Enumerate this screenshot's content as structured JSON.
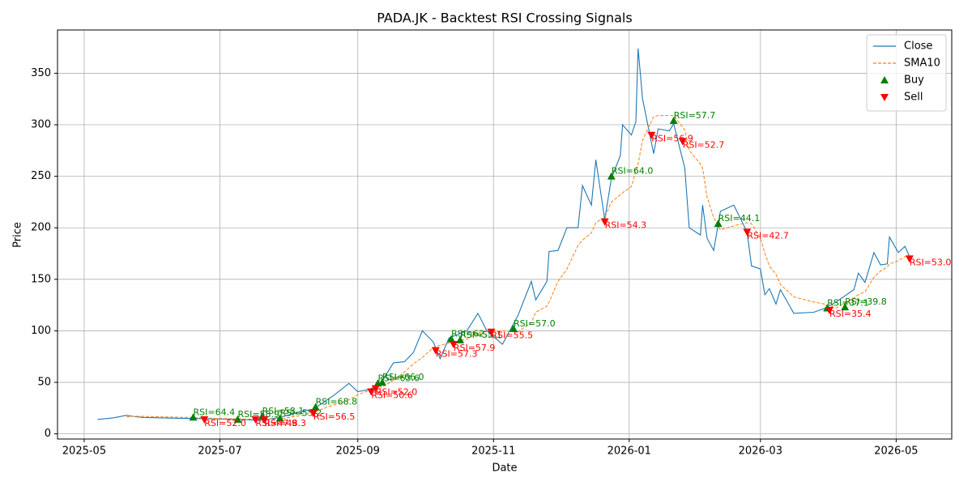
{
  "chart_data": {
    "type": "line",
    "title": "PADA.JK - Backtest RSI Crossing Signals",
    "xlabel": "Date",
    "ylabel": "Price",
    "x": [
      "2025-05-07",
      "2025-05-14",
      "2025-05-20",
      "2025-05-23",
      "2025-05-27",
      "2025-06-05",
      "2025-06-16",
      "2025-06-30",
      "2025-07-11",
      "2025-07-19",
      "2025-07-28",
      "2025-08-07",
      "2025-08-12",
      "2025-08-21",
      "2025-08-28",
      "2025-09-01",
      "2025-09-06",
      "2025-09-11",
      "2025-09-17",
      "2025-09-22",
      "2025-09-26",
      "2025-09-30",
      "2025-10-05",
      "2025-10-08",
      "2025-10-12",
      "2025-10-20",
      "2025-10-25",
      "2025-10-29",
      "2025-11-05",
      "2025-11-12",
      "2025-11-18",
      "2025-11-20",
      "2025-11-25",
      "2025-11-26",
      "2025-11-30",
      "2025-12-04",
      "2025-12-09",
      "2025-12-11",
      "2025-12-15",
      "2025-12-17",
      "2025-12-21",
      "2025-12-24",
      "2025-12-28",
      "2025-12-29",
      "2026-01-02",
      "2026-01-04",
      "2026-01-05",
      "2026-01-07",
      "2026-01-12",
      "2026-01-14",
      "2026-01-19",
      "2026-01-21",
      "2026-01-26",
      "2026-01-28",
      "2026-02-02",
      "2026-02-03",
      "2026-02-05",
      "2026-02-08",
      "2026-02-11",
      "2026-02-17",
      "2026-02-23",
      "2026-02-25",
      "2026-03-01",
      "2026-03-03",
      "2026-03-05",
      "2026-03-08",
      "2026-03-10",
      "2026-03-16",
      "2026-03-25",
      "2026-03-30",
      "2026-04-04",
      "2026-04-12",
      "2026-04-14",
      "2026-04-17",
      "2026-04-21",
      "2026-04-24",
      "2026-04-27",
      "2026-04-28",
      "2026-05-02",
      "2026-05-05",
      "2026-05-07"
    ],
    "series": [
      {
        "name": "Close",
        "color": "#1f77b4",
        "style": "solid",
        "values": [
          14,
          15.5,
          18,
          17,
          16,
          15.5,
          15,
          14.5,
          14,
          13,
          16,
          22,
          24,
          37,
          49,
          41,
          43,
          48,
          69,
          70,
          79,
          100,
          89,
          73,
          93,
          100,
          117,
          100,
          87,
          115,
          148,
          130,
          148,
          177,
          178,
          200,
          200,
          241,
          222,
          266,
          208,
          248,
          270,
          300,
          290,
          303,
          374,
          325,
          272,
          296,
          294,
          301,
          258,
          200,
          193,
          222,
          190,
          178,
          216,
          222,
          196,
          163,
          160,
          135,
          141,
          126,
          140,
          117,
          118,
          122,
          128,
          140,
          156,
          147,
          176,
          164,
          165,
          191,
          176,
          182,
          172
        ]
      },
      {
        "name": "SMA10",
        "color": "#ff7f0e",
        "style": "dashed",
        "values": [
          null,
          null,
          16.5,
          17,
          17,
          16.5,
          16,
          15,
          14.5,
          14,
          14.5,
          18,
          21,
          28,
          33,
          38,
          42,
          44,
          52,
          60,
          68,
          74,
          84,
          86,
          88,
          92,
          98,
          100,
          100,
          99,
          108,
          118,
          124,
          128,
          148,
          160,
          183,
          188,
          195,
          205,
          210,
          225,
          232,
          234,
          240,
          255,
          262,
          285,
          308,
          309,
          309,
          309,
          295,
          275,
          262,
          258,
          230,
          210,
          198,
          202,
          205,
          204,
          190,
          175,
          163,
          155,
          145,
          133,
          128,
          126,
          122,
          132,
          135,
          138,
          152,
          158,
          162,
          165,
          168,
          172,
          174
        ]
      }
    ],
    "signals": [
      {
        "name": "Buy",
        "color": "#008000",
        "marker": "up",
        "x": [
          "2025-06-19",
          "2025-07-09",
          "2025-07-20",
          "2025-07-28",
          "2025-08-13",
          "2025-09-10",
          "2025-09-12",
          "2025-10-13",
          "2025-10-17",
          "2025-11-10",
          "2025-12-24",
          "2026-01-21",
          "2026-02-10",
          "2026-03-31",
          "2026-04-08"
        ],
        "values": [
          16,
          14,
          17,
          15,
          26,
          49,
          50,
          92,
          91,
          102,
          250,
          304,
          204,
          122,
          123
        ],
        "labels": [
          "RSI=64.4",
          "RSI=58.9",
          "RSI=58.1",
          "RSI=55.2",
          "RSI=68.8",
          "RSI=63.6",
          "RSI=66.0",
          "RSI=62.3",
          "RSI=55.1",
          "RSI=57.0",
          "RSI=64.0",
          "RSI=57.7",
          "RSI=44.1",
          "RSI=37.1",
          "RSI=39.8"
        ]
      },
      {
        "name": "Sell",
        "color": "#ff0000",
        "marker": "down",
        "x": [
          "2025-06-24",
          "2025-07-17",
          "2025-07-21",
          "2025-08-12",
          "2025-09-07",
          "2025-09-09",
          "2025-10-06",
          "2025-10-14",
          "2025-10-31",
          "2025-12-21",
          "2026-01-11",
          "2026-01-25",
          "2026-02-23",
          "2026-04-01",
          "2026-05-07"
        ],
        "values": [
          14,
          14,
          14,
          20,
          41,
          44,
          81,
          87,
          99,
          206,
          290,
          284,
          196,
          120,
          170
        ],
        "labels": [
          "RSI=52.0",
          "RSI=47.9",
          "RSI=48.3",
          "RSI=56.5",
          "RSI=50.6",
          "RSI=52.0",
          "RSI=57.3",
          "RSI=57.9",
          "RSI=55.5",
          "RSI=54.3",
          "RSI=56.9",
          "RSI=52.7",
          "RSI=42.7",
          "RSI=35.4",
          "RSI=53.0"
        ]
      }
    ],
    "xlim": [
      "2025-04-19",
      "2026-05-26"
    ],
    "xticks": [
      {
        "value": "2025-05-01",
        "label": "2025-05"
      },
      {
        "value": "2025-07-01",
        "label": "2025-07"
      },
      {
        "value": "2025-09-01",
        "label": "2025-09"
      },
      {
        "value": "2025-11-01",
        "label": "2025-11"
      },
      {
        "value": "2026-01-01",
        "label": "2026-01"
      },
      {
        "value": "2026-03-01",
        "label": "2026-03"
      },
      {
        "value": "2026-05-01",
        "label": "2026-05"
      }
    ],
    "ylim": [
      -5,
      392
    ],
    "yticks": [
      0,
      50,
      100,
      150,
      200,
      250,
      300,
      350
    ],
    "grid": true,
    "legend": "upper right"
  }
}
